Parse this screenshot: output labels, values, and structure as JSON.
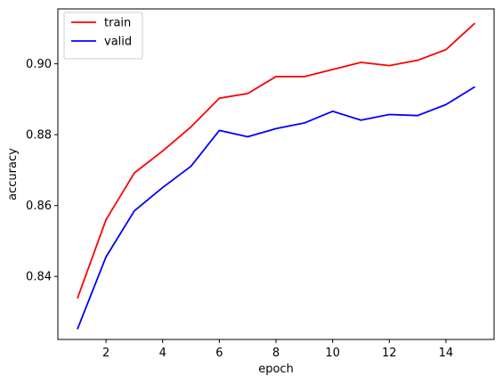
{
  "chart_data": {
    "type": "line",
    "xlabel": "epoch",
    "ylabel": "accuracy",
    "xlim": [
      0.3,
      15.7
    ],
    "ylim": [
      0.8222,
      0.9155
    ],
    "xticks": [
      "2",
      "4",
      "6",
      "8",
      "10",
      "12",
      "14"
    ],
    "yticks": [
      "0.84",
      "0.86",
      "0.88",
      "0.90"
    ],
    "grid": false,
    "legend": {
      "position": "top-left"
    },
    "x": [
      1,
      2,
      3,
      4,
      5,
      6,
      7,
      8,
      9,
      10,
      11,
      12,
      13,
      14,
      15
    ],
    "series": [
      {
        "name": "train",
        "color": "#ff0000",
        "values": [
          0.834,
          0.856,
          0.8692,
          0.8754,
          0.8822,
          0.8903,
          0.8916,
          0.8964,
          0.8964,
          0.8984,
          0.9004,
          0.8995,
          0.901,
          0.904,
          0.9113
        ]
      },
      {
        "name": "valid",
        "color": "#0000ff",
        "values": [
          0.8253,
          0.8455,
          0.8585,
          0.8651,
          0.8711,
          0.8812,
          0.8794,
          0.8817,
          0.8833,
          0.8866,
          0.8841,
          0.8857,
          0.8854,
          0.8885,
          0.8934
        ]
      }
    ]
  }
}
